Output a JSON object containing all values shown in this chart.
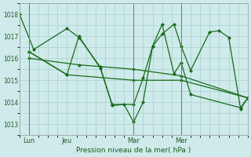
{
  "background_color": "#ceeaea",
  "grid_color": "#aacfcf",
  "line_color": "#1a6b1a",
  "marker_color": "#1a6b1a",
  "xlabel": "Pression niveau de la mer( hPa )",
  "ylim": [
    1012.5,
    1018.5
  ],
  "yticks": [
    1013,
    1014,
    1015,
    1016,
    1017,
    1018
  ],
  "xlim": [
    0,
    96
  ],
  "x_tick_positions": [
    4,
    20,
    48,
    68
  ],
  "x_labels": [
    "Lun",
    "Jeu",
    "Mar",
    "Mer"
  ],
  "x_major_vlines": [
    4,
    48,
    68
  ],
  "series1_x": [
    0,
    6,
    20,
    25,
    34,
    39,
    44,
    48,
    52,
    56,
    60,
    65,
    68,
    72,
    80,
    84,
    88,
    93,
    96
  ],
  "series1_y": [
    1018.0,
    1016.4,
    1017.35,
    1016.95,
    1015.6,
    1013.85,
    1013.9,
    1013.1,
    1014.0,
    1016.55,
    1017.1,
    1017.55,
    1016.55,
    1015.45,
    1017.2,
    1017.25,
    1016.95,
    1013.7,
    1014.2
  ],
  "series2_x": [
    4,
    20,
    25,
    34,
    39,
    48,
    52,
    56,
    60,
    65,
    68,
    72,
    93,
    96
  ],
  "series2_y": [
    1016.3,
    1015.25,
    1017.0,
    1015.55,
    1013.9,
    1013.9,
    1015.1,
    1016.55,
    1017.55,
    1015.3,
    1015.8,
    1014.35,
    1013.75,
    1014.2
  ],
  "series3_x": [
    4,
    20,
    48,
    68,
    96
  ],
  "series3_y": [
    1016.3,
    1015.25,
    1015.0,
    1015.0,
    1014.2
  ],
  "series4_x": [
    4,
    25,
    48,
    68,
    96
  ],
  "series4_y": [
    1016.0,
    1015.7,
    1015.5,
    1015.2,
    1014.2
  ]
}
